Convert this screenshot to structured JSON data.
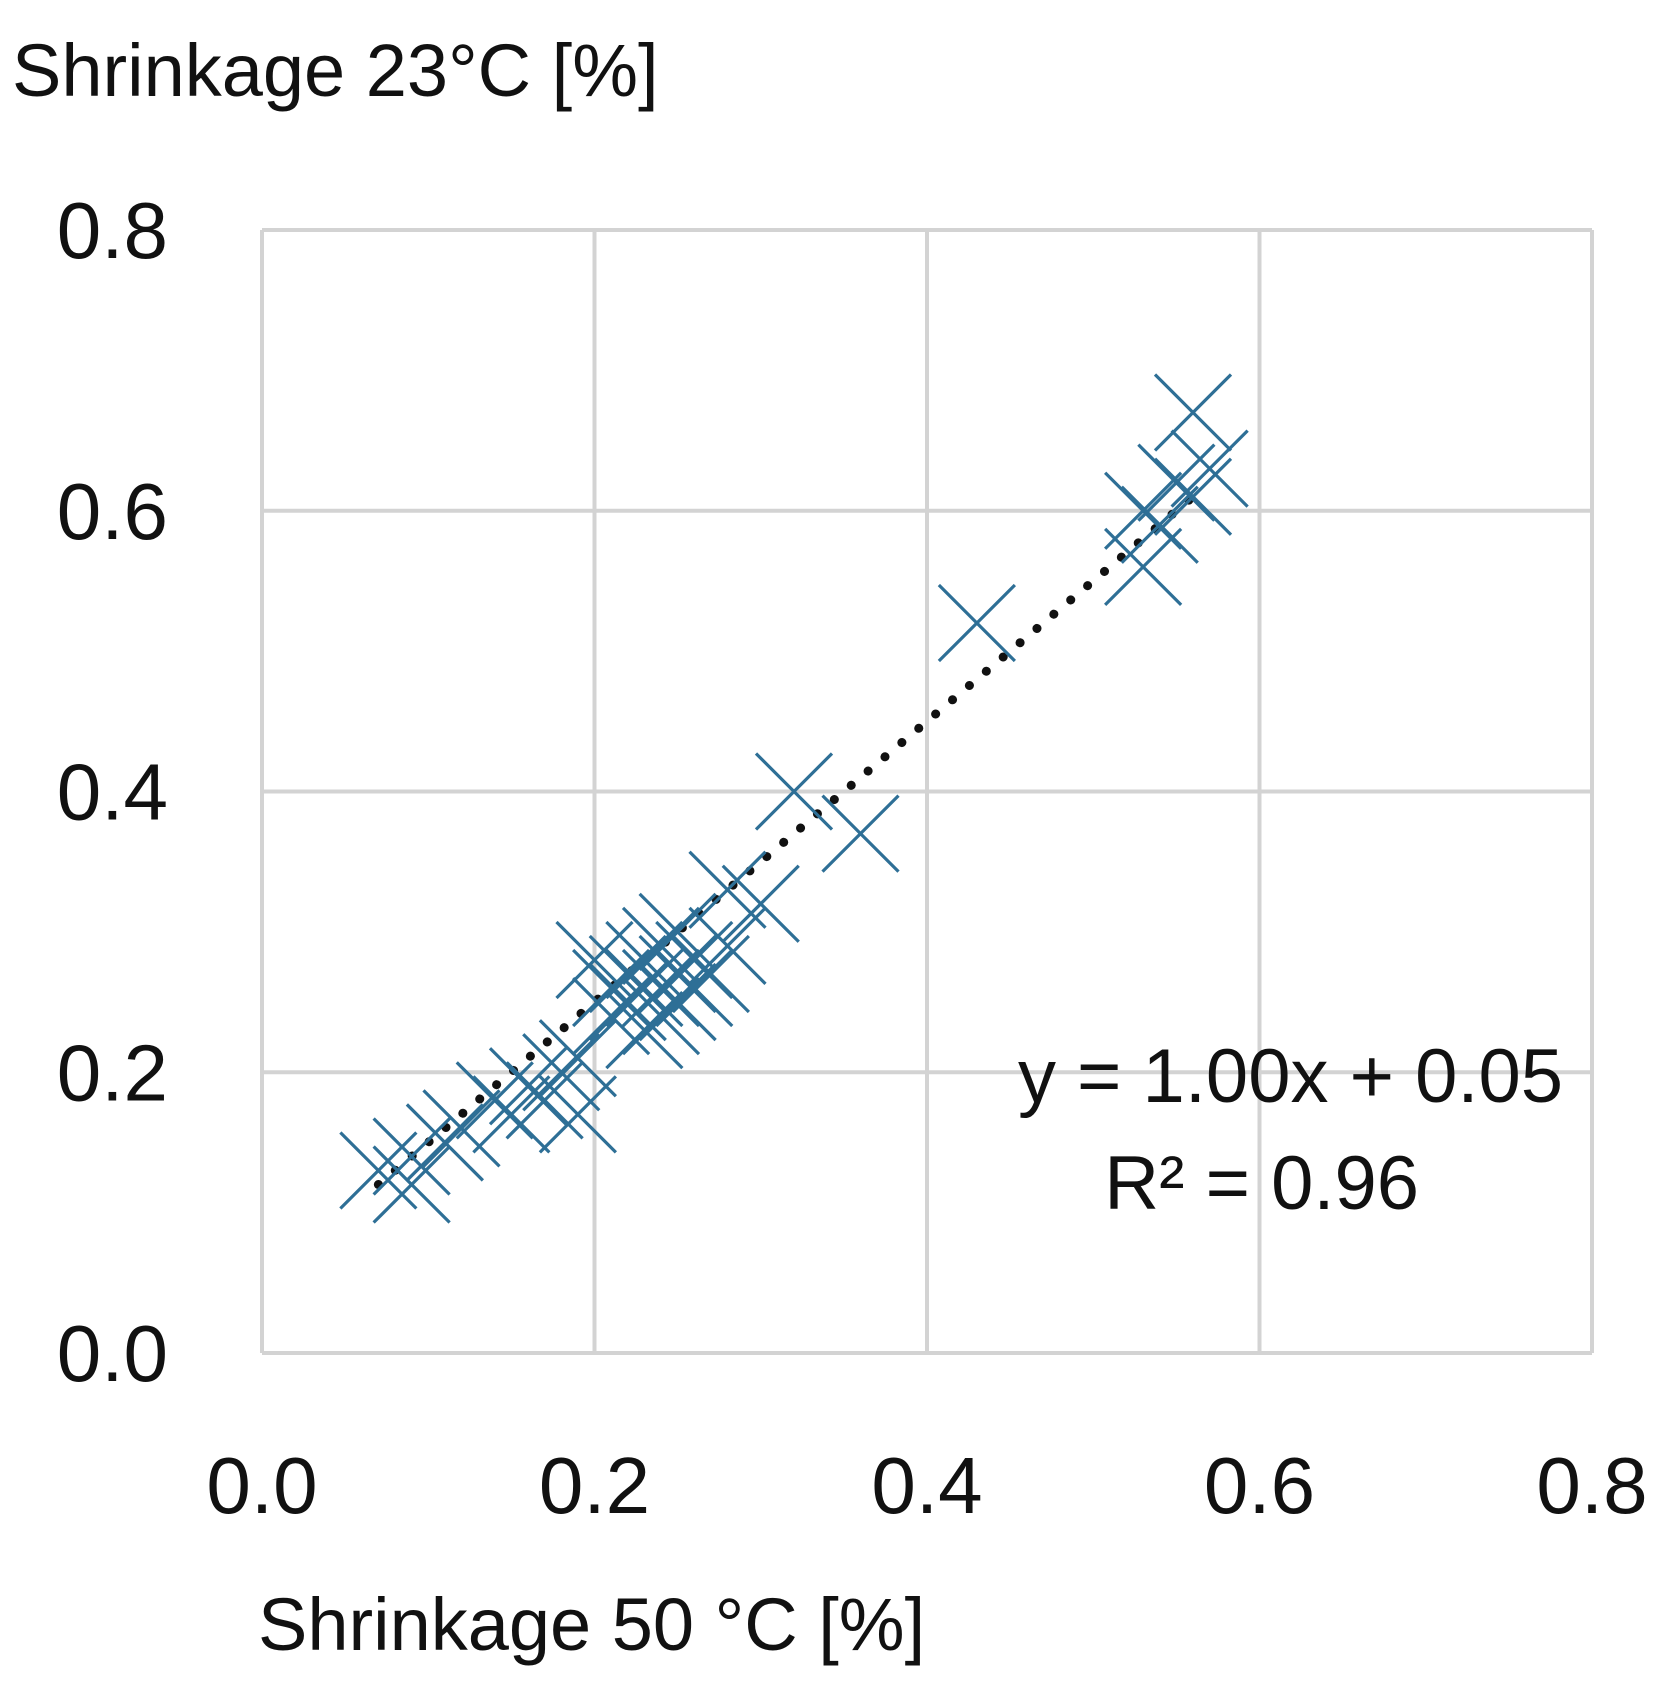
{
  "chart_data": {
    "type": "scatter",
    "title": "",
    "ylabel": "Shrinkage 23°C [%]",
    "xlabel": "Shrinkage 50 °C [%]",
    "xlim": [
      0.0,
      0.8
    ],
    "ylim": [
      0.0,
      0.8
    ],
    "x_ticks": [
      "0.0",
      "0.2",
      "0.4",
      "0.6",
      "0.8"
    ],
    "y_ticks": [
      "0.0",
      "0.2",
      "0.4",
      "0.6",
      "0.8"
    ],
    "x_tick_values": [
      0.0,
      0.2,
      0.4,
      0.6,
      0.8
    ],
    "y_tick_values": [
      0.0,
      0.2,
      0.4,
      0.6,
      0.8
    ],
    "grid": true,
    "marker": "x",
    "marker_color": "#2e6f96",
    "grid_color": "#d3d3d3",
    "trendline": {
      "style": "dotted",
      "color": "#111111",
      "x_range": [
        0.07,
        0.565
      ],
      "equation": "y = 1.00x + 0.05",
      "r_squared": "R² = 0.96"
    },
    "series": [
      {
        "points": [
          [
            0.07,
            0.13
          ],
          [
            0.09,
            0.12
          ],
          [
            0.09,
            0.14
          ],
          [
            0.11,
            0.15
          ],
          [
            0.12,
            0.16
          ],
          [
            0.14,
            0.18
          ],
          [
            0.15,
            0.17
          ],
          [
            0.16,
            0.19
          ],
          [
            0.17,
            0.18
          ],
          [
            0.18,
            0.2
          ],
          [
            0.19,
            0.17
          ],
          [
            0.19,
            0.21
          ],
          [
            0.2,
            0.28
          ],
          [
            0.21,
            0.26
          ],
          [
            0.21,
            0.24
          ],
          [
            0.22,
            0.25
          ],
          [
            0.22,
            0.27
          ],
          [
            0.23,
            0.23
          ],
          [
            0.23,
            0.26
          ],
          [
            0.23,
            0.28
          ],
          [
            0.24,
            0.24
          ],
          [
            0.24,
            0.26
          ],
          [
            0.24,
            0.29
          ],
          [
            0.25,
            0.25
          ],
          [
            0.25,
            0.27
          ],
          [
            0.25,
            0.3
          ],
          [
            0.26,
            0.26
          ],
          [
            0.26,
            0.28
          ],
          [
            0.27,
            0.27
          ],
          [
            0.28,
            0.29
          ],
          [
            0.28,
            0.33
          ],
          [
            0.3,
            0.32
          ],
          [
            0.32,
            0.4
          ],
          [
            0.36,
            0.37
          ],
          [
            0.43,
            0.52
          ],
          [
            0.53,
            0.56
          ],
          [
            0.53,
            0.6
          ],
          [
            0.54,
            0.59
          ],
          [
            0.55,
            0.62
          ],
          [
            0.56,
            0.61
          ],
          [
            0.56,
            0.67
          ],
          [
            0.57,
            0.63
          ]
        ]
      }
    ]
  }
}
